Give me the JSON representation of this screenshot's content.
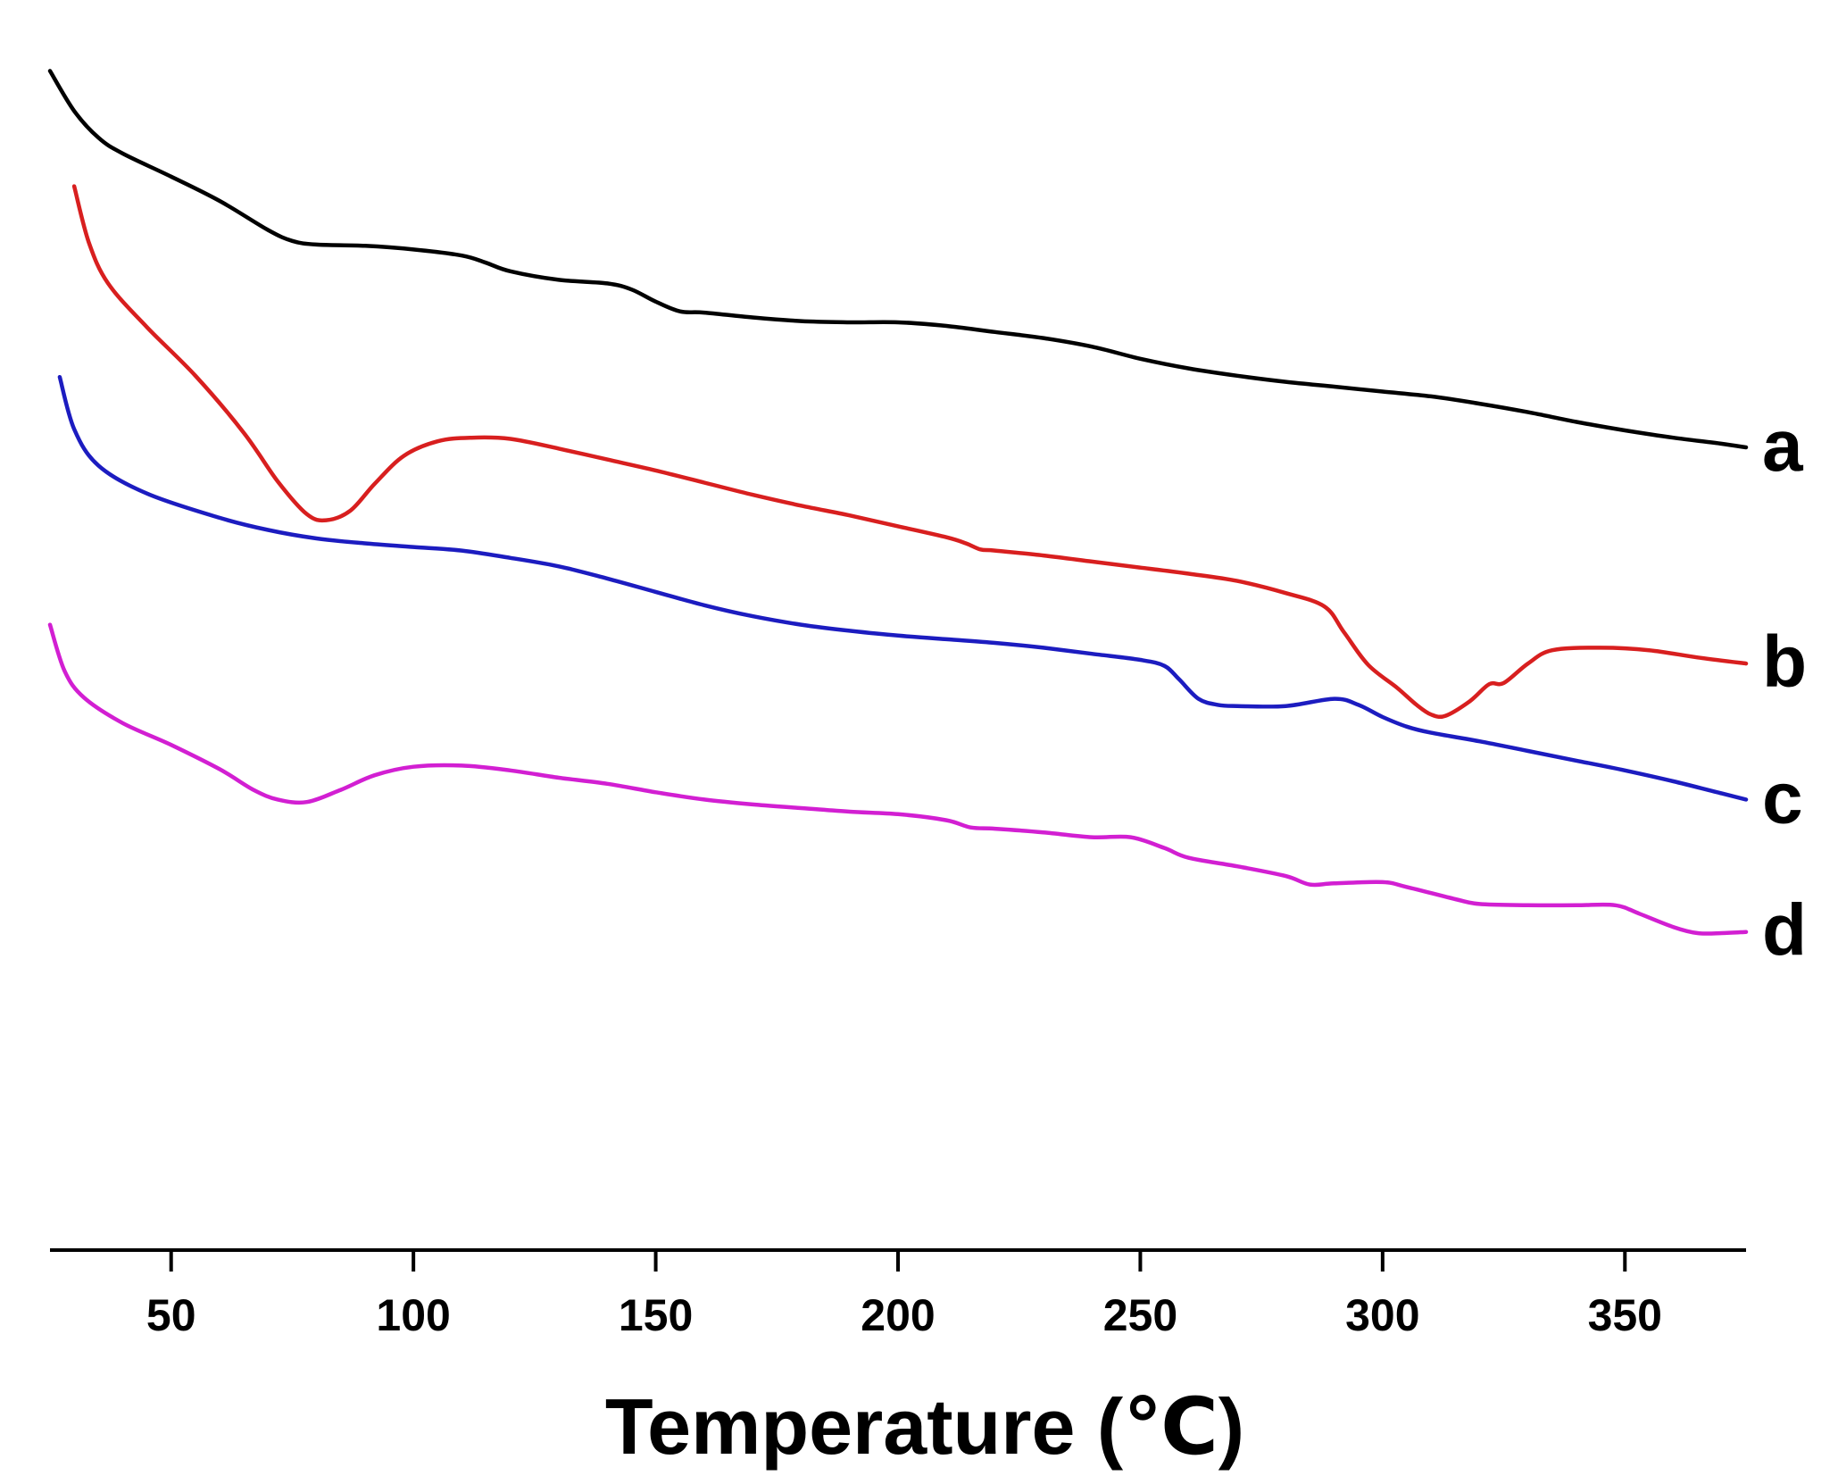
{
  "chart_data": {
    "type": "line",
    "title": "",
    "xlabel": "Temperature (℃)",
    "ylabel": "",
    "xlim": [
      25,
      375
    ],
    "ylim": [
      0,
      100
    ],
    "grid": false,
    "xticks": [
      50,
      100,
      150,
      200,
      250,
      300,
      350
    ],
    "series": [
      {
        "name": "a",
        "color": "#000000",
        "points": [
          [
            25,
            97.1
          ],
          [
            30,
            93.8
          ],
          [
            35,
            91.6
          ],
          [
            40,
            90.3
          ],
          [
            50,
            88.4
          ],
          [
            60,
            86.4
          ],
          [
            70,
            84.0
          ],
          [
            75,
            83.1
          ],
          [
            80,
            82.8
          ],
          [
            90,
            82.7
          ],
          [
            100,
            82.4
          ],
          [
            110,
            81.9
          ],
          [
            115,
            81.3
          ],
          [
            120,
            80.6
          ],
          [
            130,
            79.9
          ],
          [
            140,
            79.6
          ],
          [
            145,
            79.1
          ],
          [
            150,
            78.1
          ],
          [
            155,
            77.3
          ],
          [
            160,
            77.2
          ],
          [
            170,
            76.8
          ],
          [
            180,
            76.5
          ],
          [
            190,
            76.4
          ],
          [
            200,
            76.4
          ],
          [
            210,
            76.1
          ],
          [
            220,
            75.6
          ],
          [
            230,
            75.1
          ],
          [
            240,
            74.4
          ],
          [
            250,
            73.4
          ],
          [
            260,
            72.6
          ],
          [
            270,
            72.0
          ],
          [
            280,
            71.5
          ],
          [
            290,
            71.1
          ],
          [
            300,
            70.7
          ],
          [
            310,
            70.3
          ],
          [
            320,
            69.7
          ],
          [
            330,
            69.0
          ],
          [
            340,
            68.2
          ],
          [
            350,
            67.5
          ],
          [
            360,
            66.9
          ],
          [
            370,
            66.4
          ],
          [
            375,
            66.1
          ]
        ]
      },
      {
        "name": "b",
        "color": "#d81f1f",
        "points": [
          [
            30,
            87.6
          ],
          [
            33,
            83.0
          ],
          [
            37,
            79.6
          ],
          [
            45,
            76.0
          ],
          [
            55,
            72.0
          ],
          [
            65,
            67.3
          ],
          [
            72,
            63.3
          ],
          [
            78,
            60.6
          ],
          [
            82,
            60.1
          ],
          [
            87,
            60.9
          ],
          [
            92,
            63.1
          ],
          [
            98,
            65.4
          ],
          [
            105,
            66.6
          ],
          [
            112,
            66.9
          ],
          [
            120,
            66.8
          ],
          [
            130,
            66.0
          ],
          [
            140,
            65.1
          ],
          [
            150,
            64.2
          ],
          [
            160,
            63.2
          ],
          [
            170,
            62.2
          ],
          [
            180,
            61.3
          ],
          [
            190,
            60.5
          ],
          [
            200,
            59.6
          ],
          [
            210,
            58.7
          ],
          [
            214,
            58.2
          ],
          [
            217,
            57.7
          ],
          [
            220,
            57.6
          ],
          [
            230,
            57.2
          ],
          [
            240,
            56.7
          ],
          [
            250,
            56.2
          ],
          [
            260,
            55.7
          ],
          [
            270,
            55.1
          ],
          [
            280,
            54.1
          ],
          [
            288,
            53.0
          ],
          [
            292,
            50.9
          ],
          [
            297,
            48.2
          ],
          [
            303,
            46.3
          ],
          [
            307,
            44.9
          ],
          [
            310,
            44.1
          ],
          [
            313,
            44.0
          ],
          [
            318,
            45.2
          ],
          [
            322,
            46.6
          ],
          [
            325,
            46.7
          ],
          [
            330,
            48.3
          ],
          [
            335,
            49.4
          ],
          [
            345,
            49.6
          ],
          [
            355,
            49.4
          ],
          [
            365,
            48.8
          ],
          [
            375,
            48.3
          ]
        ]
      },
      {
        "name": "c",
        "color": "#1c1cc0",
        "points": [
          [
            27,
            71.9
          ],
          [
            30,
            67.6
          ],
          [
            35,
            64.6
          ],
          [
            45,
            62.3
          ],
          [
            60,
            60.3
          ],
          [
            70,
            59.3
          ],
          [
            80,
            58.6
          ],
          [
            90,
            58.2
          ],
          [
            100,
            57.9
          ],
          [
            110,
            57.6
          ],
          [
            120,
            57.0
          ],
          [
            130,
            56.3
          ],
          [
            140,
            55.3
          ],
          [
            150,
            54.2
          ],
          [
            160,
            53.1
          ],
          [
            170,
            52.2
          ],
          [
            180,
            51.5
          ],
          [
            190,
            51.0
          ],
          [
            200,
            50.6
          ],
          [
            210,
            50.3
          ],
          [
            220,
            50.0
          ],
          [
            230,
            49.6
          ],
          [
            240,
            49.1
          ],
          [
            250,
            48.6
          ],
          [
            255,
            48.1
          ],
          [
            258,
            47.0
          ],
          [
            262,
            45.4
          ],
          [
            266,
            44.9
          ],
          [
            270,
            44.8
          ],
          [
            280,
            44.8
          ],
          [
            290,
            45.4
          ],
          [
            295,
            44.9
          ],
          [
            300,
            43.9
          ],
          [
            305,
            43.1
          ],
          [
            310,
            42.6
          ],
          [
            320,
            41.9
          ],
          [
            330,
            41.1
          ],
          [
            340,
            40.3
          ],
          [
            350,
            39.5
          ],
          [
            360,
            38.6
          ],
          [
            370,
            37.6
          ],
          [
            375,
            37.1
          ]
        ]
      },
      {
        "name": "d",
        "color": "#d21fd2",
        "points": [
          [
            25,
            51.5
          ],
          [
            28,
            47.7
          ],
          [
            32,
            45.5
          ],
          [
            40,
            43.4
          ],
          [
            50,
            41.6
          ],
          [
            60,
            39.6
          ],
          [
            67,
            37.9
          ],
          [
            72,
            37.1
          ],
          [
            78,
            36.9
          ],
          [
            85,
            37.9
          ],
          [
            92,
            39.1
          ],
          [
            100,
            39.8
          ],
          [
            110,
            39.9
          ],
          [
            120,
            39.5
          ],
          [
            130,
            38.9
          ],
          [
            140,
            38.4
          ],
          [
            150,
            37.7
          ],
          [
            160,
            37.1
          ],
          [
            170,
            36.7
          ],
          [
            180,
            36.4
          ],
          [
            190,
            36.1
          ],
          [
            200,
            35.9
          ],
          [
            210,
            35.4
          ],
          [
            215,
            34.8
          ],
          [
            220,
            34.7
          ],
          [
            230,
            34.4
          ],
          [
            240,
            34.0
          ],
          [
            248,
            34.0
          ],
          [
            255,
            33.1
          ],
          [
            260,
            32.3
          ],
          [
            270,
            31.6
          ],
          [
            280,
            30.8
          ],
          [
            285,
            30.1
          ],
          [
            290,
            30.2
          ],
          [
            300,
            30.3
          ],
          [
            305,
            29.9
          ],
          [
            315,
            28.9
          ],
          [
            320,
            28.5
          ],
          [
            330,
            28.4
          ],
          [
            340,
            28.4
          ],
          [
            348,
            28.4
          ],
          [
            353,
            27.7
          ],
          [
            360,
            26.6
          ],
          [
            365,
            26.1
          ],
          [
            370,
            26.1
          ],
          [
            375,
            26.2
          ]
        ]
      }
    ]
  }
}
